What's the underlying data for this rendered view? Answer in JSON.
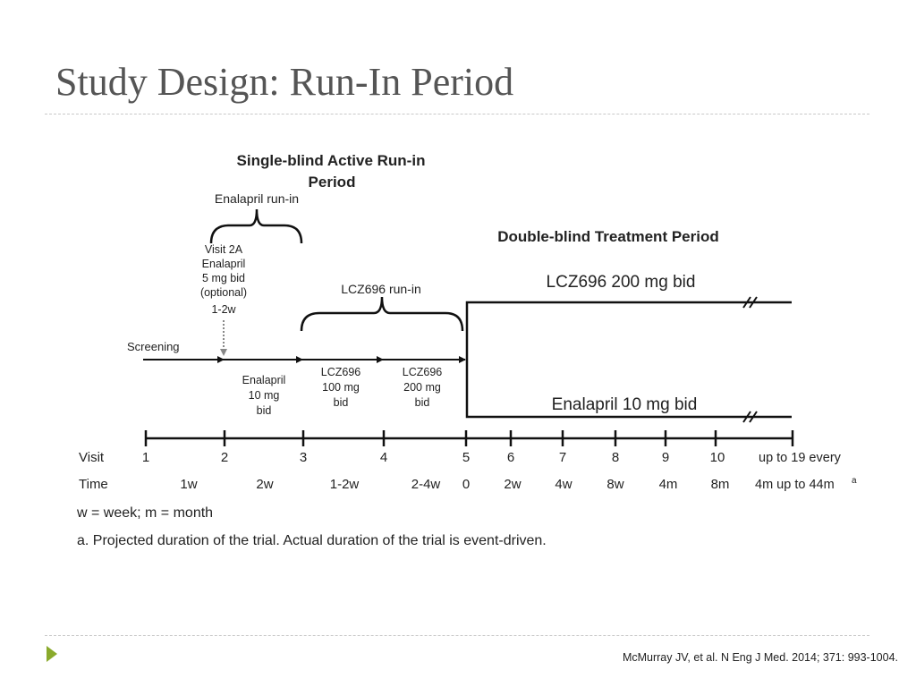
{
  "slide": {
    "title": "Study Design: Run-In Period",
    "citation": "McMurray JV, et al. N Eng J Med. 2014; 371: 993-1004."
  },
  "diagram": {
    "single_blind_line1": "Single-blind Active Run-in",
    "single_blind_line2": "Period",
    "enalapril_runin": "Enalapril run-in",
    "visit2a_lines": [
      "Visit 2A",
      "Enalapril",
      "5 mg bid",
      "(optional)",
      "1-2w"
    ],
    "screening": "Screening",
    "lcz_runin": "LCZ696 run-in",
    "double_blind": "Double-blind Treatment Period",
    "lcz_arm": "LCZ696 200 mg bid",
    "enalapril_arm": "Enalapril 10 mg bid",
    "dose_enalapril_lines": [
      "Enalapril",
      "10 mg",
      "bid"
    ],
    "dose_lcz100_lines": [
      "LCZ696",
      "100 mg",
      "bid"
    ],
    "dose_lcz200_lines": [
      "LCZ696",
      "200 mg",
      "bid"
    ],
    "visit_row_label": "Visit",
    "time_row_label": "Time",
    "visits": [
      "1",
      "2",
      "3",
      "4",
      "5",
      "6",
      "7",
      "8",
      "9",
      "10"
    ],
    "visit_last": "up to 19 every",
    "times": [
      "1w",
      "2w",
      "1-2w",
      "2-4w",
      "0",
      "2w",
      "4w",
      "8w",
      "4m",
      "8m"
    ],
    "time_last": "4m up to 44m",
    "time_last_sup": "a",
    "footnote_units": "w = week; m = month",
    "footnote_a": "a. Projected duration of the trial. Actual duration of the trial is event-driven."
  }
}
